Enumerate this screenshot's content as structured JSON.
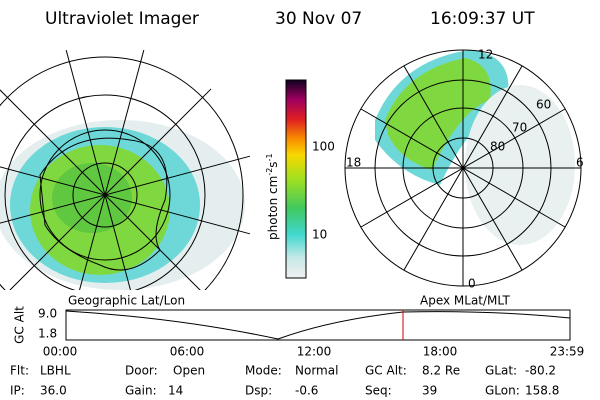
{
  "header": {
    "title": "Ultraviolet Imager",
    "date": "30 Nov 07",
    "time": "16:09:37 UT"
  },
  "colorbar": {
    "units": [
      "photon cm",
      "-2",
      "s",
      "-1"
    ],
    "ticks": [
      "100",
      "10"
    ]
  },
  "left_panel": {
    "label": "Geographic Lat/Lon"
  },
  "right_panel": {
    "label": "Apex MLat/MLT",
    "mlt": [
      "12",
      "18",
      "6",
      "0"
    ],
    "mlat": [
      "60",
      "70",
      "80"
    ]
  },
  "altitude_plot": {
    "axis_label": "GC Alt",
    "yticks": [
      "9.0",
      "1.8"
    ],
    "xticks": [
      "00:00",
      "06:00",
      "12:00",
      "18:00",
      "23:59"
    ]
  },
  "status": {
    "rows": [
      [
        {
          "label": "Flt:",
          "value": "LBHL"
        },
        {
          "label": "Door:",
          "value": "Open"
        },
        {
          "label": "Mode:",
          "value": "Normal"
        },
        {
          "label": "GC Alt:",
          "value": "8.2 Re"
        },
        {
          "label": "GLat:",
          "value": "-80.2"
        }
      ],
      [
        {
          "label": "IP:",
          "value": "36.0"
        },
        {
          "label": "Gain:",
          "value": "14"
        },
        {
          "label": "Dsp:",
          "value": "-0.6"
        },
        {
          "label": "Seq:",
          "value": "39"
        },
        {
          "label": "GLon:",
          "value": "158.8"
        }
      ]
    ]
  }
}
